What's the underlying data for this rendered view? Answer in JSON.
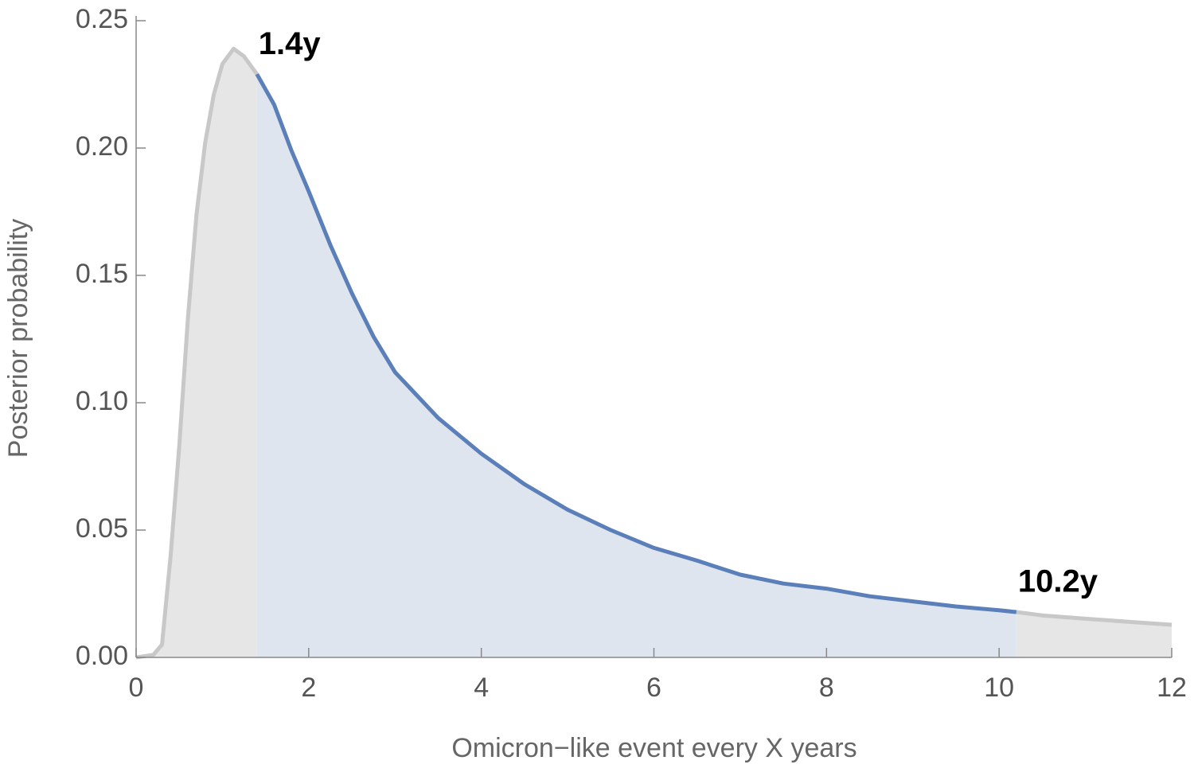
{
  "chart_data": {
    "type": "line",
    "xlabel": "Omicron−like event every X years",
    "ylabel": "Posterior probability",
    "x": [
      0,
      0.2,
      0.3,
      0.4,
      0.5,
      0.6,
      0.7,
      0.8,
      0.9,
      1.0,
      1.13,
      1.25,
      1.4,
      1.6,
      1.8,
      2,
      2.25,
      2.5,
      2.75,
      3,
      3.5,
      4,
      4.5,
      5,
      5.5,
      6,
      6.5,
      7,
      7.5,
      8,
      8.5,
      9,
      9.5,
      10,
      10.2,
      10.5,
      11,
      11.5,
      12
    ],
    "series": [
      {
        "color": "#c8c8c8",
        "fill": "#e6e6e6",
        "values": [
          0,
          0.001,
          0.005,
          0.04,
          0.083,
          0.133,
          0.174,
          0.202,
          0.221,
          0.233,
          0.239,
          0.236,
          0.229,
          null,
          null,
          null,
          null,
          null,
          null,
          null,
          null,
          null,
          null,
          null,
          null,
          null,
          null,
          null,
          null,
          null,
          null,
          null,
          null,
          null,
          0.0178,
          0.0165,
          0.0152,
          0.014,
          0.0128
        ]
      },
      {
        "color": "#5b7fb8",
        "fill": "#dfe5ef",
        "values": [
          null,
          null,
          null,
          null,
          null,
          null,
          null,
          null,
          null,
          null,
          null,
          null,
          0.229,
          0.217,
          0.199,
          0.183,
          0.162,
          0.143,
          0.126,
          0.112,
          0.094,
          0.08,
          0.068,
          0.058,
          0.05,
          0.043,
          0.038,
          0.0325,
          0.029,
          0.027,
          0.024,
          0.022,
          0.02,
          0.0185,
          0.0178,
          null,
          null,
          null,
          null
        ]
      }
    ],
    "annotations": [
      "1.4y",
      "10.2y"
    ],
    "xlim": [
      0,
      12
    ],
    "xticks": [
      0,
      2,
      4,
      6,
      8,
      10,
      12
    ],
    "ylim": [
      0,
      0.25
    ],
    "yticks": [
      {
        "value": 0,
        "label": "0.00"
      },
      0.05,
      {
        "value": 0.1,
        "label": "0.10"
      },
      0.15,
      {
        "value": 0.2,
        "label": "0.20"
      },
      0.25
    ]
  }
}
